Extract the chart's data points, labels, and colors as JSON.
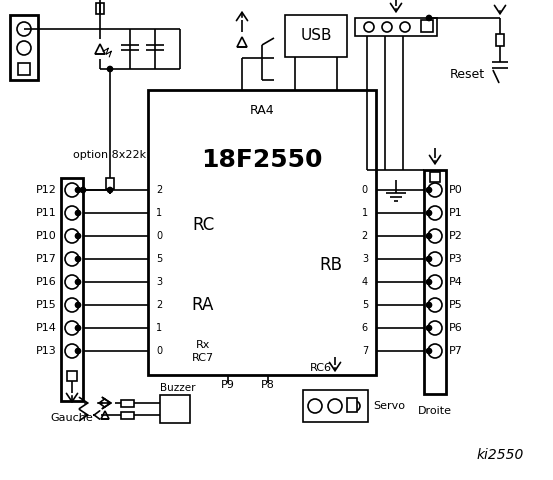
{
  "bg_color": "#ffffff",
  "chip_label": "18F2550",
  "chip_sub": "RA4",
  "rc_label": "RC",
  "ra_label": "RA",
  "rb_label": "RB",
  "rc_pins": [
    "2",
    "1",
    "0",
    "5",
    "3",
    "2",
    "1",
    "0"
  ],
  "rb_pins": [
    "0",
    "1",
    "2",
    "3",
    "4",
    "5",
    "6",
    "7"
  ],
  "left_labels": [
    "P12",
    "P11",
    "P10",
    "P17",
    "P16",
    "P15",
    "P14",
    "P13"
  ],
  "right_labels": [
    "P0",
    "P1",
    "P2",
    "P3",
    "P4",
    "P5",
    "P6",
    "P7"
  ],
  "option_text": "option 8x22k",
  "reset_text": "Reset",
  "usb_text": "USB",
  "rx_text": "Rx",
  "rc7_text": "RC7",
  "rc6_text": "RC6",
  "droite_text": "Droite",
  "gauche_text": "Gauche",
  "servo_text": "Servo",
  "buzzer_text": "Buzzer",
  "p8_text": "P8",
  "p9_text": "P9",
  "title": "ki2550"
}
